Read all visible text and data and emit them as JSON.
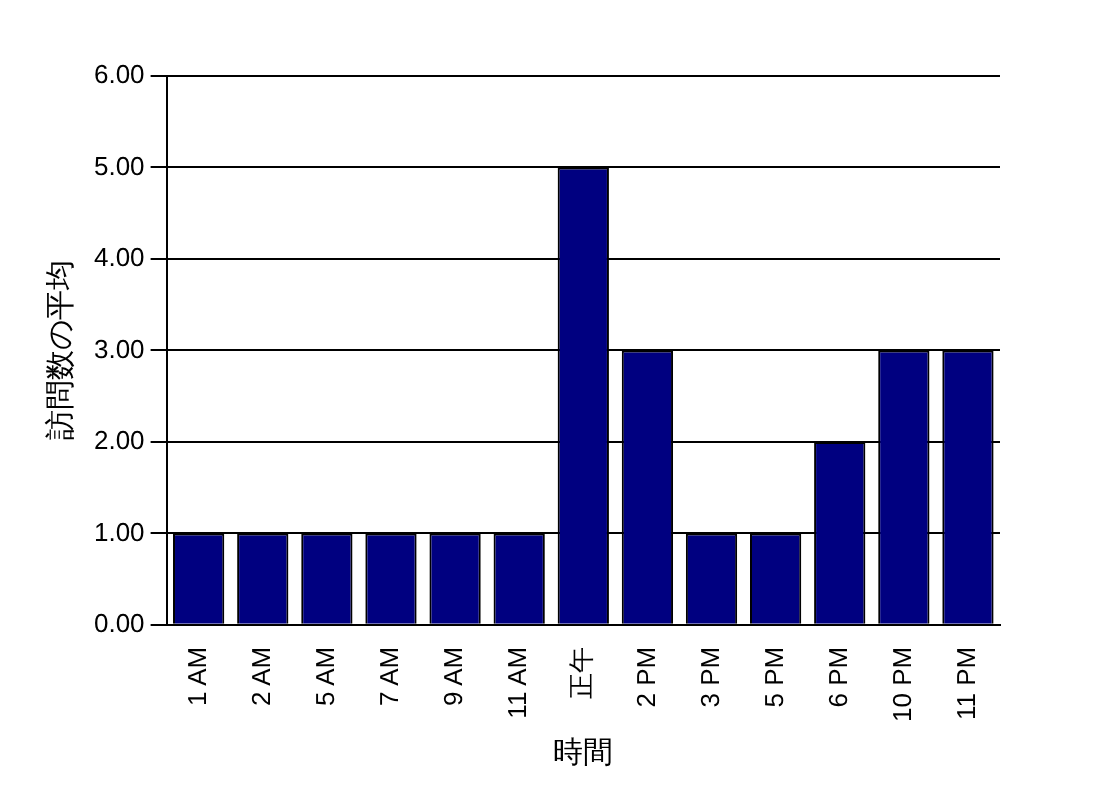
{
  "chart_data": {
    "type": "bar",
    "xlabel": "時間",
    "ylabel": "訪問数の平均",
    "categories": [
      "1 AM",
      "2 AM",
      "5 AM",
      "7 AM",
      "9 AM",
      "11 AM",
      "正午",
      "2 PM",
      "3 PM",
      "5 PM",
      "6 PM",
      "10 PM",
      "11 PM"
    ],
    "values": [
      1,
      1,
      1,
      1,
      1,
      1,
      5,
      3,
      1,
      1,
      2,
      3,
      3
    ],
    "color": "#000080",
    "ylim": [
      0,
      6
    ],
    "yticks": [
      {
        "value": 0,
        "label": "0.00"
      },
      {
        "value": 1,
        "label": "1.00"
      },
      {
        "value": 2,
        "label": "2.00"
      },
      {
        "value": 3,
        "label": "3.00"
      },
      {
        "value": 4,
        "label": "4.00"
      },
      {
        "value": 5,
        "label": "5.00"
      },
      {
        "value": 6,
        "label": "6.00"
      }
    ],
    "grid": "y",
    "legend": false
  }
}
